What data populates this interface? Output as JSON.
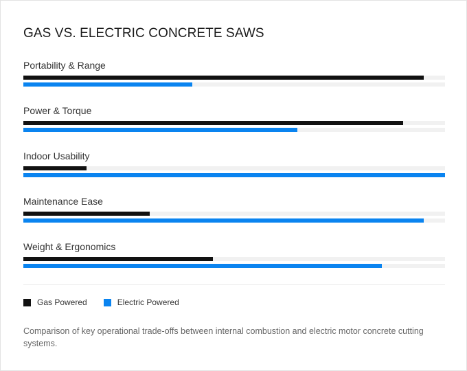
{
  "colors": {
    "gas": "#111111",
    "electric": "#0a84f0",
    "track": "#f1f1f1"
  },
  "caption": "Comparison of key operational trade-offs between internal combustion and electric motor concrete cutting systems.",
  "chart_data": {
    "type": "bar",
    "orientation": "horizontal",
    "title": "GAS VS. ELECTRIC CONCRETE SAWS",
    "categories": [
      "Portability & Range",
      "Power & Torque",
      "Indoor Usability",
      "Maintenance Ease",
      "Weight & Ergonomics"
    ],
    "series": [
      {
        "name": "Gas Powered",
        "values": [
          95,
          90,
          15,
          30,
          45
        ]
      },
      {
        "name": "Electric Powered",
        "values": [
          40,
          65,
          100,
          95,
          85
        ]
      }
    ],
    "xlim": [
      0,
      100
    ],
    "grid": false,
    "legend": "bottom-left"
  }
}
